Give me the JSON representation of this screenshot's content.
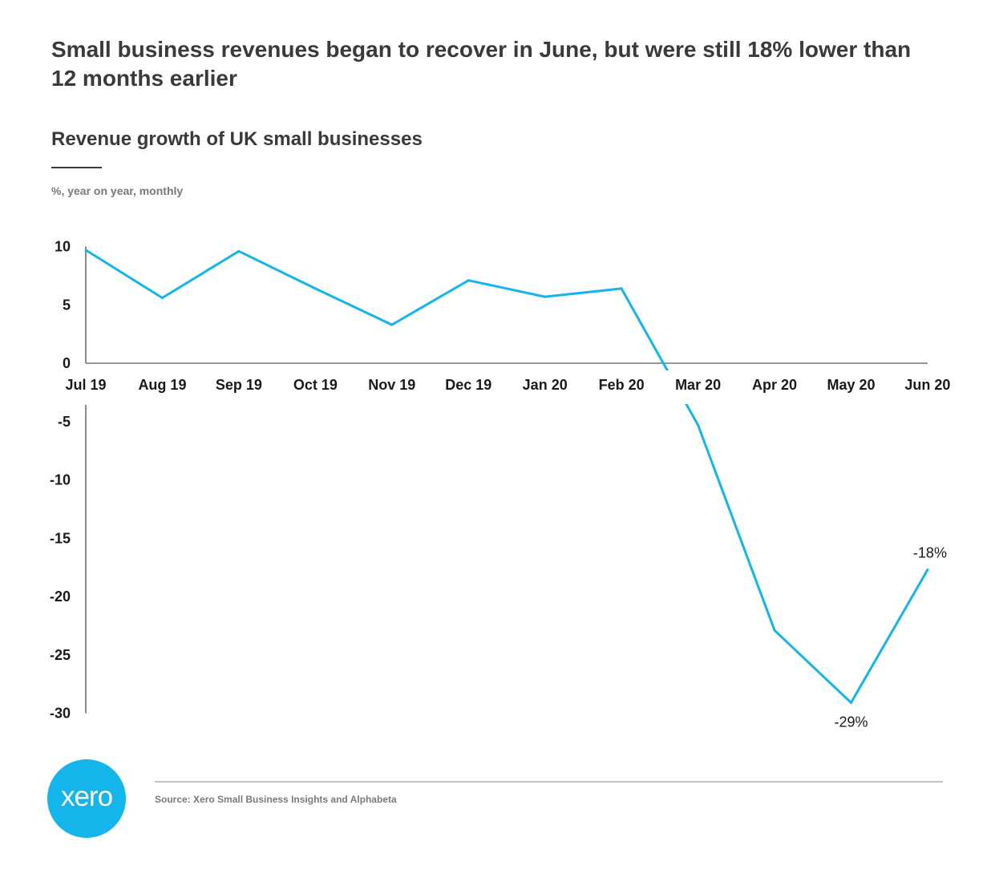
{
  "headline": "Small business revenues began to recover in June, but were still 18% lower than 12 months earlier",
  "source": "Source: Xero Small Business Insights and Alphabeta",
  "logo_text": "xero",
  "colors": {
    "line": "#13b5ea",
    "text": "#3a3a3a",
    "logo": "#13b5ea"
  },
  "chart_data": {
    "type": "line",
    "title": "Revenue growth of UK small businesses",
    "subtitle": "%, year on year, monthly",
    "categories": [
      "Jul 19",
      "Aug 19",
      "Sep 19",
      "Oct 19",
      "Nov 19",
      "Dec 19",
      "Jan 20",
      "Feb 20",
      "Mar 20",
      "Apr 20",
      "May 20",
      "Jun 20"
    ],
    "series": [
      {
        "values": [
          9.7,
          5.6,
          9.6,
          6.4,
          3.3,
          7.1,
          5.7,
          6.4,
          -5.3,
          -22.9,
          -29.1,
          -17.7
        ]
      }
    ],
    "yticks": [
      10,
      5,
      0,
      -5,
      -10,
      -15,
      -20,
      -25,
      -30
    ],
    "ylim": [
      -30,
      10
    ],
    "annotations": [
      {
        "category": "May 20",
        "text": "-29%"
      },
      {
        "category": "Jun 20",
        "text": "-18%"
      }
    ],
    "grid": false
  }
}
